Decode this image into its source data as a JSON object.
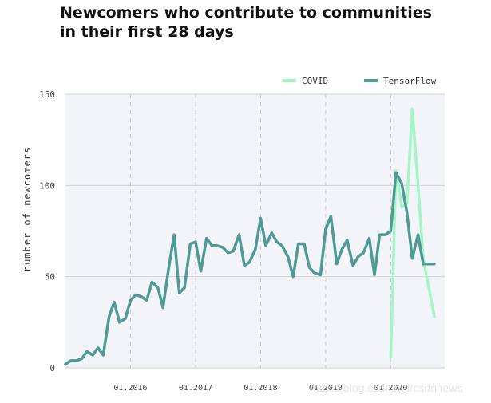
{
  "chart_data": {
    "type": "line",
    "title_lines": [
      "Newcomers who contribute to communities",
      "in their first 28 days"
    ],
    "ylabel": "number of newcomers",
    "xlabel": "",
    "ylim": [
      0,
      150
    ],
    "y_ticks": [
      "0",
      "50",
      "100",
      "150"
    ],
    "x_ticks": [
      "01.2016",
      "01.2017",
      "01.2018",
      "01.2019",
      "01.2020"
    ],
    "grid": true,
    "legend_position": "top-right",
    "series": [
      {
        "name": "COVID",
        "color": "#a5f5c8",
        "x": [
          2020.0,
          2020.08,
          2020.17,
          2020.25,
          2020.33,
          2020.42,
          2020.5,
          2020.58,
          2020.67
        ],
        "values": [
          6,
          108,
          88,
          90,
          142,
          100,
          60,
          45,
          28
        ]
      },
      {
        "name": "TensorFlow",
        "color": "#4f9a94",
        "x": [
          2015.0,
          2015.08,
          2015.17,
          2015.25,
          2015.33,
          2015.42,
          2015.5,
          2015.58,
          2015.67,
          2015.75,
          2015.83,
          2015.92,
          2016.0,
          2016.08,
          2016.17,
          2016.25,
          2016.33,
          2016.42,
          2016.5,
          2016.58,
          2016.67,
          2016.75,
          2016.83,
          2016.92,
          2017.0,
          2017.08,
          2017.17,
          2017.25,
          2017.33,
          2017.42,
          2017.5,
          2017.58,
          2017.67,
          2017.75,
          2017.83,
          2017.92,
          2018.0,
          2018.08,
          2018.17,
          2018.25,
          2018.33,
          2018.42,
          2018.5,
          2018.58,
          2018.67,
          2018.75,
          2018.83,
          2018.92,
          2019.0,
          2019.08,
          2019.17,
          2019.25,
          2019.33,
          2019.42,
          2019.5,
          2019.58,
          2019.67,
          2019.75,
          2019.83,
          2019.92,
          2020.0,
          2020.08,
          2020.17,
          2020.25,
          2020.33,
          2020.42,
          2020.5,
          2020.58,
          2020.67
        ],
        "values": [
          2,
          4,
          4,
          5,
          9,
          7,
          11,
          7,
          28,
          36,
          25,
          27,
          37,
          40,
          39,
          37,
          47,
          44,
          33,
          53,
          73,
          41,
          44,
          68,
          69,
          53,
          71,
          67,
          67,
          66,
          63,
          64,
          73,
          56,
          58,
          65,
          82,
          67,
          74,
          69,
          67,
          61,
          50,
          68,
          68,
          55,
          52,
          51,
          76,
          83,
          57,
          65,
          70,
          56,
          61,
          63,
          71,
          51,
          73,
          73,
          75,
          107,
          101,
          85,
          60,
          73,
          57,
          57,
          57
        ]
      }
    ],
    "watermark": "https://blog.csdn.net/csdnnews"
  }
}
